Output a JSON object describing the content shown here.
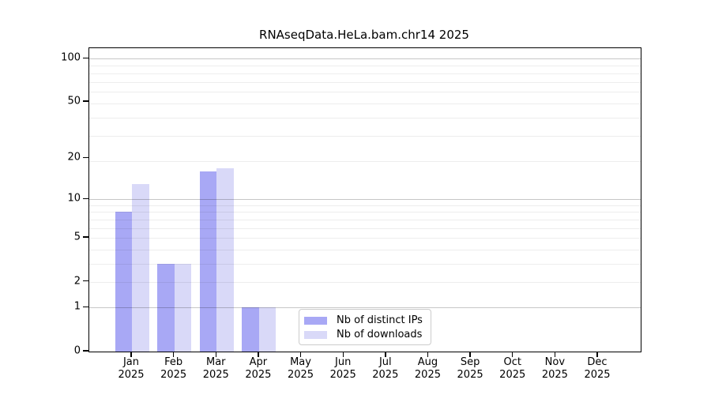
{
  "title": "RNAseqData.HeLa.bam.chr14 2025",
  "chart_data": {
    "type": "bar",
    "title": "RNAseqData.HeLa.bam.chr14 2025",
    "categories": [
      "Jan",
      "Feb",
      "Mar",
      "Apr",
      "May",
      "Jun",
      "Jul",
      "Aug",
      "Sep",
      "Oct",
      "Nov",
      "Dec"
    ],
    "year_label": "2025",
    "series": [
      {
        "name": "Nb of distinct IPs",
        "color": "#a8a8f5",
        "values": [
          8,
          3,
          16,
          1,
          0,
          0,
          0,
          0,
          0,
          0,
          0,
          0
        ]
      },
      {
        "name": "Nb of downloads",
        "color": "#d9d9f8",
        "values": [
          13,
          3,
          17,
          1,
          0,
          0,
          0,
          0,
          0,
          0,
          0,
          0
        ]
      }
    ],
    "yticks": [
      0,
      1,
      2,
      5,
      10,
      20,
      50,
      100
    ],
    "ylim": [
      0,
      118
    ],
    "y_scale": "log10(1+v)",
    "grid": "horizontal",
    "legend_position": "inside-bottom-center",
    "colors": {
      "spine": "#000000",
      "background": "#ffffff",
      "major_grid": "rgba(0,0,0,0.22)",
      "minor_grid": "rgba(0,0,0,0.07)"
    }
  }
}
